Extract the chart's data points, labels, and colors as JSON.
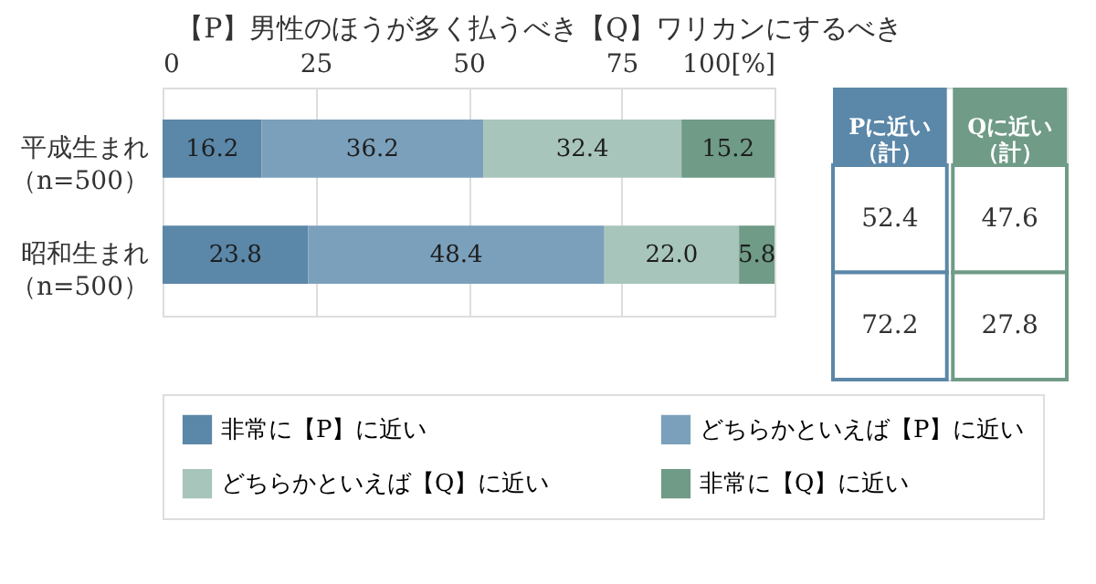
{
  "chart_data": {
    "type": "bar",
    "orientation": "horizontal",
    "stacked": true,
    "title": "【P】男性のほうが多く払うべき【Q】ワリカンにするべき",
    "categories": [
      "平成生まれ（n=500）",
      "昭和生まれ（n=500）"
    ],
    "series": [
      {
        "name": "非常に【P】に近い",
        "color": "#5b87a8",
        "values": [
          16.2,
          23.8
        ],
        "value_labels": [
          "16.2",
          "23.8"
        ]
      },
      {
        "name": "どちらかといえば【P】に近い",
        "color": "#7ba0bb",
        "values": [
          36.2,
          48.4
        ],
        "value_labels": [
          "36.2",
          "48.4"
        ]
      },
      {
        "name": "どちらかといえば【Q】に近い",
        "color": "#a7c5ba",
        "values": [
          32.4,
          22.0
        ],
        "value_labels": [
          "32.4",
          "22.0"
        ]
      },
      {
        "name": "非常に【Q】に近い",
        "color": "#6f9b87",
        "values": [
          15.2,
          5.8
        ],
        "value_labels": [
          "15.2",
          "5.8"
        ]
      }
    ],
    "xlim": [
      0,
      100
    ],
    "xticks": [
      0,
      25,
      50,
      75,
      {
        "value": 100,
        "label": "100[%]"
      }
    ],
    "grid": "x",
    "legend": "bottom",
    "annotations": [
      "Pに近い（計）",
      "Qに近い（計）",
      "52.4",
      "47.6",
      "72.2",
      "27.8"
    ]
  }
}
